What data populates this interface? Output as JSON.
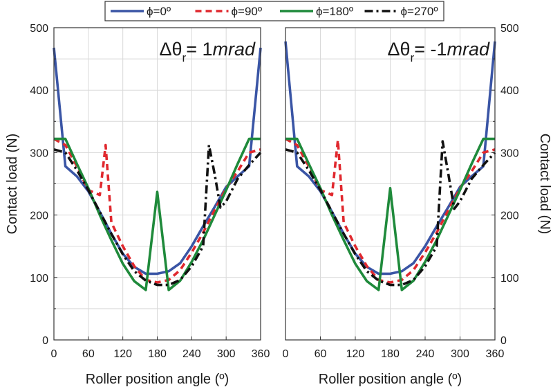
{
  "chart_data": [
    {
      "type": "line",
      "annotation_parts": [
        "Δθ",
        "r",
        "=  1",
        "mrad"
      ],
      "xlabel": "Roller position angle (º)",
      "ylabel": "Contact load (N)",
      "xlim": [
        0,
        360
      ],
      "ylim": [
        0,
        500
      ],
      "xticks": [
        "0",
        "60",
        "120",
        "180",
        "240",
        "300",
        "360"
      ],
      "yticks": [
        "0",
        "100",
        "200",
        "300",
        "400",
        "500"
      ],
      "grid": true,
      "series": [
        {
          "name": "ϕ=0º",
          "x": [
            0,
            20,
            40,
            60,
            80,
            100,
            120,
            140,
            160,
            180,
            200,
            220,
            240,
            260,
            280,
            300,
            320,
            340,
            360
          ],
          "values": [
            468,
            278,
            262,
            238,
            205,
            170,
            138,
            117,
            106,
            106,
            110,
            123,
            150,
            182,
            213,
            245,
            262,
            278,
            468
          ]
        },
        {
          "name": "ϕ=90º",
          "x": [
            0,
            20,
            40,
            60,
            80,
            90,
            100,
            120,
            140,
            160,
            180,
            200,
            220,
            240,
            260,
            280,
            300,
            320,
            340,
            360
          ],
          "values": [
            322,
            312,
            278,
            240,
            232,
            312,
            188,
            150,
            118,
            96,
            92,
            96,
            112,
            140,
            172,
            208,
            243,
            270,
            300,
            305
          ]
        },
        {
          "name": "ϕ=180º",
          "x": [
            0,
            20,
            40,
            60,
            80,
            100,
            120,
            140,
            160,
            180,
            200,
            220,
            240,
            260,
            280,
            300,
            320,
            340,
            360
          ],
          "values": [
            322,
            322,
            282,
            243,
            200,
            160,
            122,
            94,
            80,
            237,
            80,
            95,
            125,
            160,
            200,
            240,
            282,
            322,
            322
          ]
        },
        {
          "name": "ϕ=270º",
          "x": [
            0,
            20,
            40,
            60,
            80,
            100,
            120,
            140,
            160,
            180,
            200,
            220,
            240,
            260,
            270,
            280,
            290,
            300,
            320,
            340,
            360
          ],
          "values": [
            305,
            300,
            272,
            240,
            205,
            170,
            137,
            110,
            95,
            88,
            88,
            96,
            118,
            150,
            312,
            265,
            212,
            222,
            258,
            280,
            300
          ]
        }
      ]
    },
    {
      "type": "line",
      "annotation_parts": [
        "Δθ",
        "r",
        "= -1",
        "mrad"
      ],
      "xlabel": "Roller position angle (º)",
      "ylabel": "Contact load (N)",
      "xlim": [
        0,
        360
      ],
      "ylim": [
        0,
        500
      ],
      "xticks": [
        "0",
        "60",
        "120",
        "180",
        "240",
        "300",
        "360"
      ],
      "yticks": [
        "0",
        "100",
        "200",
        "300",
        "400",
        "500"
      ],
      "grid": true,
      "series": [
        {
          "name": "ϕ=0º",
          "x": [
            0,
            20,
            40,
            60,
            80,
            100,
            120,
            140,
            160,
            180,
            200,
            220,
            240,
            260,
            280,
            300,
            320,
            340,
            360
          ],
          "values": [
            478,
            278,
            262,
            238,
            205,
            170,
            138,
            117,
            106,
            106,
            110,
            123,
            150,
            182,
            213,
            245,
            262,
            278,
            478
          ]
        },
        {
          "name": "ϕ=90º",
          "x": [
            0,
            20,
            40,
            60,
            80,
            90,
            100,
            120,
            140,
            160,
            180,
            200,
            220,
            240,
            260,
            280,
            300,
            320,
            340,
            360
          ],
          "values": [
            322,
            312,
            278,
            240,
            232,
            320,
            188,
            150,
            118,
            96,
            92,
            96,
            112,
            140,
            172,
            208,
            243,
            270,
            300,
            305
          ]
        },
        {
          "name": "ϕ=180º",
          "x": [
            0,
            20,
            40,
            60,
            80,
            100,
            120,
            140,
            160,
            180,
            200,
            220,
            240,
            260,
            280,
            300,
            320,
            340,
            360
          ],
          "values": [
            322,
            322,
            282,
            243,
            200,
            160,
            122,
            94,
            80,
            243,
            80,
            95,
            125,
            160,
            200,
            240,
            282,
            322,
            322
          ]
        },
        {
          "name": "ϕ=270º",
          "x": [
            0,
            20,
            40,
            60,
            80,
            100,
            120,
            140,
            160,
            180,
            200,
            220,
            240,
            260,
            270,
            280,
            290,
            300,
            320,
            340,
            360
          ],
          "values": [
            305,
            300,
            272,
            240,
            205,
            170,
            137,
            110,
            95,
            88,
            88,
            96,
            118,
            150,
            318,
            265,
            210,
            222,
            258,
            280,
            300
          ]
        }
      ]
    }
  ],
  "legend": [
    {
      "label": "ϕ=0º",
      "color": "#3a55a5",
      "dash": "solid"
    },
    {
      "label": "ϕ=90º",
      "color": "#e0282e",
      "dash": "dashed"
    },
    {
      "label": "ϕ=180º",
      "color": "#1f8a3b",
      "dash": "solid"
    },
    {
      "label": "ϕ=270º",
      "color": "#111111",
      "dash": "dashdot"
    }
  ]
}
